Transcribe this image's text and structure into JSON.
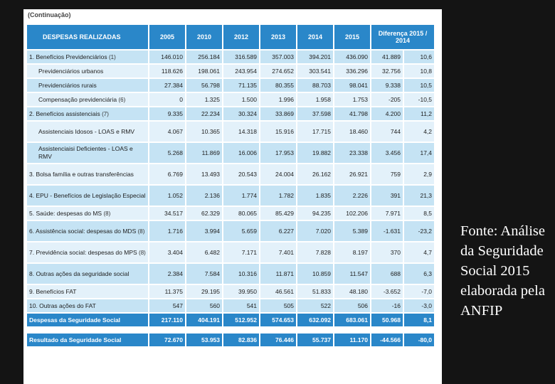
{
  "continuation_label": "(Continuação)",
  "table": {
    "headers": [
      "DESPESAS REALIZADAS",
      "2005",
      "2010",
      "2012",
      "2013",
      "2014",
      "2015",
      "Diferença 2015 / 2014"
    ],
    "rows": [
      {
        "label": "1. Benefícios Previdenciários",
        "note": "(1)",
        "indent": false,
        "tall": false,
        "values": [
          "146.010",
          "256.184",
          "316.589",
          "357.003",
          "394.201",
          "436.090",
          "41.889",
          "10,6"
        ]
      },
      {
        "label": "Previdenciários urbanos",
        "note": "",
        "indent": true,
        "tall": false,
        "values": [
          "118.626",
          "198.061",
          "243.954",
          "274.652",
          "303.541",
          "336.296",
          "32.756",
          "10,8"
        ]
      },
      {
        "label": "Previdenciários rurais",
        "note": "",
        "indent": true,
        "tall": false,
        "values": [
          "27.384",
          "56.798",
          "71.135",
          "80.355",
          "88.703",
          "98.041",
          "9.338",
          "10,5"
        ]
      },
      {
        "label": "Compensação previdenciária",
        "note": "(6)",
        "indent": true,
        "tall": false,
        "values": [
          "0",
          "1.325",
          "1.500",
          "1.996",
          "1.958",
          "1.753",
          "-205",
          "-10,5"
        ]
      },
      {
        "label": "2. Benefícios assistenciais",
        "note": "(7)",
        "indent": false,
        "tall": false,
        "values": [
          "9.335",
          "22.234",
          "30.324",
          "33.869",
          "37.598",
          "41.798",
          "4.200",
          "11,2"
        ]
      },
      {
        "label": "Assistenciais Idosos - LOAS e RMV",
        "note": "",
        "indent": true,
        "tall": true,
        "values": [
          "4.067",
          "10.365",
          "14.318",
          "15.916",
          "17.715",
          "18.460",
          "744",
          "4,2"
        ]
      },
      {
        "label": "Assistenciaisi Deficientes - LOAS e RMV",
        "note": "",
        "indent": true,
        "tall": true,
        "values": [
          "5.268",
          "11.869",
          "16.006",
          "17.953",
          "19.882",
          "23.338",
          "3.456",
          "17,4"
        ]
      },
      {
        "label": "3. Bolsa família e outras transferências",
        "note": "",
        "indent": false,
        "tall": true,
        "values": [
          "6.769",
          "13.493",
          "20.543",
          "24.004",
          "26.162",
          "26.921",
          "759",
          "2,9"
        ]
      },
      {
        "label": "4. EPU - Benefícios de Legislação Especial",
        "note": "",
        "indent": false,
        "tall": true,
        "values": [
          "1.052",
          "2.136",
          "1.774",
          "1.782",
          "1.835",
          "2.226",
          "391",
          "21,3"
        ]
      },
      {
        "label": "5. Saúde: despesas do MS",
        "note": "(8)",
        "indent": false,
        "tall": false,
        "values": [
          "34.517",
          "62.329",
          "80.065",
          "85.429",
          "94.235",
          "102.206",
          "7.971",
          "8,5"
        ]
      },
      {
        "label": "6. Assistência social: despesas do MDS",
        "note": "(8)",
        "indent": false,
        "tall": true,
        "values": [
          "1.716",
          "3.994",
          "5.659",
          "6.227",
          "7.020",
          "5.389",
          "-1.631",
          "-23,2"
        ]
      },
      {
        "label": "7. Previdência social: despesas do MPS",
        "note": "(8)",
        "indent": false,
        "tall": true,
        "values": [
          "3.404",
          "6.482",
          "7.171",
          "7.401",
          "7.828",
          "8.197",
          "370",
          "4,7"
        ]
      },
      {
        "label": "8. Outras ações da seguridade social",
        "note": "",
        "indent": false,
        "tall": true,
        "values": [
          "2.384",
          "7.584",
          "10.316",
          "11.871",
          "10.859",
          "11.547",
          "688",
          "6,3"
        ]
      },
      {
        "label": "9. Benefícios FAT",
        "note": "",
        "indent": false,
        "tall": false,
        "values": [
          "11.375",
          "29.195",
          "39.950",
          "46.561",
          "51.833",
          "48.180",
          "-3.652",
          "-7,0"
        ]
      },
      {
        "label": "10. Outras ações do FAT",
        "note": "",
        "indent": false,
        "tall": false,
        "values": [
          "547",
          "560",
          "541",
          "505",
          "522",
          "506",
          "-16",
          "-3,0"
        ]
      }
    ],
    "total": {
      "label": "Despesas da Seguridade Social",
      "values": [
        "217.110",
        "404.191",
        "512.952",
        "574.653",
        "632.092",
        "683.061",
        "50.968",
        "8,1"
      ]
    },
    "result": {
      "label": "Resultado da Seguridade Social",
      "values": [
        "72.670",
        "53.953",
        "82.836",
        "76.446",
        "55.737",
        "11.170",
        "-44.566",
        "-80,0"
      ]
    }
  },
  "source_text": "Fonte: Análise da Seguridade Social 2015 elaborada pela ANFIP",
  "colors": {
    "header": "#2a87c9",
    "row_odd": "#c5e3f4",
    "row_even": "#e3f1fa",
    "background": "#141414"
  }
}
